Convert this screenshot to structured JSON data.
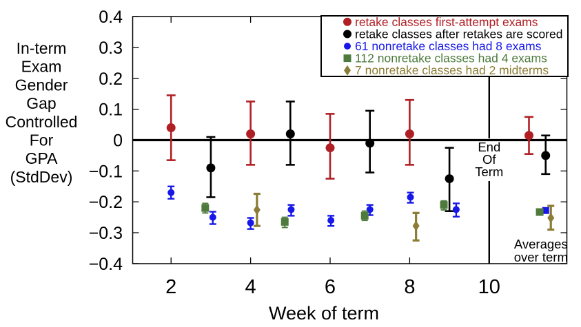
{
  "figure": {
    "background": "#ffffff",
    "frame_color": "#000000"
  },
  "chart_data": {
    "type": "scatter",
    "title": "",
    "xlabel": "Week of term",
    "ylabel_lines": [
      "In-term",
      "Exam",
      "Gender",
      "Gap",
      "Controlled",
      "For",
      "GPA",
      "(StdDev)"
    ],
    "xlim": [
      1,
      11.95
    ],
    "ylim": [
      -0.4,
      0.4
    ],
    "grid": false,
    "zero_line_y": 0,
    "x_ticks": [
      {
        "v": 2,
        "label": "2"
      },
      {
        "v": 4,
        "label": "4"
      },
      {
        "v": 6,
        "label": "6"
      },
      {
        "v": 8,
        "label": "8"
      },
      {
        "v": 10,
        "label": "10"
      }
    ],
    "y_ticks": [
      {
        "v": 0.4,
        "label": "0.4"
      },
      {
        "v": 0.3,
        "label": "0.3"
      },
      {
        "v": 0.2,
        "label": "0.2"
      },
      {
        "v": 0.1,
        "label": "0.1"
      },
      {
        "v": 0,
        "label": "0"
      },
      {
        "v": -0.1,
        "label": "−0.1"
      },
      {
        "v": -0.2,
        "label": "−0.2"
      },
      {
        "v": -0.3,
        "label": "−0.3"
      },
      {
        "v": -0.4,
        "label": "−0.4"
      }
    ],
    "legend_position": "top-right",
    "annotations": [
      {
        "id": "end-of-term",
        "x": 10,
        "lines": [
          "End",
          "Of",
          "Term"
        ]
      },
      {
        "id": "averages-note",
        "x": 11.3,
        "lines": [
          "Averages",
          "over term"
        ]
      }
    ],
    "series": [
      {
        "key": "retake-first-attempt",
        "name": "retake classes first-attempt exams",
        "color": "#b01f24",
        "marker": "circle",
        "marker_size": 6.5,
        "cap": 6.5,
        "lw": 2.6,
        "points": [
          {
            "x": 2.0,
            "y": 0.04,
            "lo": -0.065,
            "hi": 0.145
          },
          {
            "x": 4.0,
            "y": 0.02,
            "lo": -0.08,
            "hi": 0.125
          },
          {
            "x": 6.0,
            "y": -0.025,
            "lo": -0.125,
            "hi": 0.085
          },
          {
            "x": 8.0,
            "y": 0.02,
            "lo": -0.08,
            "hi": 0.13
          },
          {
            "x": 11.0,
            "y": 0.015,
            "lo": -0.045,
            "hi": 0.075,
            "note": "average over term"
          }
        ]
      },
      {
        "key": "retake-after-scored",
        "name": "retake classes after retakes are scored",
        "color": "#000000",
        "marker": "circle",
        "marker_size": 6.5,
        "cap": 6.5,
        "lw": 2.6,
        "points": [
          {
            "x": 3.0,
            "y": -0.09,
            "lo": -0.185,
            "hi": 0.01
          },
          {
            "x": 5.0,
            "y": 0.02,
            "lo": -0.08,
            "hi": 0.125
          },
          {
            "x": 7.0,
            "y": -0.01,
            "lo": -0.105,
            "hi": 0.095
          },
          {
            "x": 9.0,
            "y": -0.125,
            "lo": -0.23,
            "hi": -0.025
          },
          {
            "x": 11.42,
            "y": -0.05,
            "lo": -0.11,
            "hi": 0.015,
            "note": "average over term"
          }
        ]
      },
      {
        "key": "nonretake-8-exams",
        "name": "61 nonretake classes had 8 exams",
        "color": "#1717e8",
        "marker": "circle",
        "marker_size": 5,
        "cap": 5,
        "lw": 2.4,
        "points": [
          {
            "x": 2.0,
            "y": -0.17,
            "lo": -0.19,
            "hi": -0.15
          },
          {
            "x": 3.05,
            "y": -0.25,
            "lo": -0.272,
            "hi": -0.232
          },
          {
            "x": 4.0,
            "y": -0.268,
            "lo": -0.288,
            "hi": -0.252
          },
          {
            "x": 5.02,
            "y": -0.225,
            "lo": -0.245,
            "hi": -0.21
          },
          {
            "x": 6.02,
            "y": -0.26,
            "lo": -0.278,
            "hi": -0.245
          },
          {
            "x": 7.0,
            "y": -0.225,
            "lo": -0.243,
            "hi": -0.21
          },
          {
            "x": 8.02,
            "y": -0.185,
            "lo": -0.203,
            "hi": -0.17
          },
          {
            "x": 9.17,
            "y": -0.225,
            "lo": -0.248,
            "hi": -0.205
          },
          {
            "x": 11.42,
            "y": -0.228,
            "marker": "square",
            "note": "average over term"
          }
        ]
      },
      {
        "key": "nonretake-4-exams",
        "name": "112 nonretake classes had 4 exams",
        "color": "#4e7b3d",
        "marker": "square",
        "marker_size": 5.5,
        "cap": 4.5,
        "lw": 2,
        "points": [
          {
            "x": 2.86,
            "y": -0.22,
            "lo": -0.236,
            "hi": -0.205
          },
          {
            "x": 4.86,
            "y": -0.265,
            "lo": -0.283,
            "hi": -0.25
          },
          {
            "x": 6.87,
            "y": -0.245,
            "lo": -0.26,
            "hi": -0.23
          },
          {
            "x": 8.86,
            "y": -0.21,
            "lo": -0.226,
            "hi": -0.197
          },
          {
            "x": 11.27,
            "y": -0.233,
            "note": "average over term"
          }
        ]
      },
      {
        "key": "nonretake-2-midterms",
        "name": " 7 nonretake classes had 2 midterms",
        "color": "#8b7d35",
        "marker": "diamond",
        "marker_size": 6,
        "cap": 5,
        "lw": 3.2,
        "points": [
          {
            "x": 4.16,
            "y": -0.226,
            "lo": -0.278,
            "hi": -0.174
          },
          {
            "x": 8.16,
            "y": -0.278,
            "lo": -0.325,
            "hi": -0.236
          },
          {
            "x": 11.55,
            "y": -0.252,
            "lo": -0.29,
            "hi": -0.213,
            "note": "average over term"
          }
        ]
      }
    ]
  }
}
